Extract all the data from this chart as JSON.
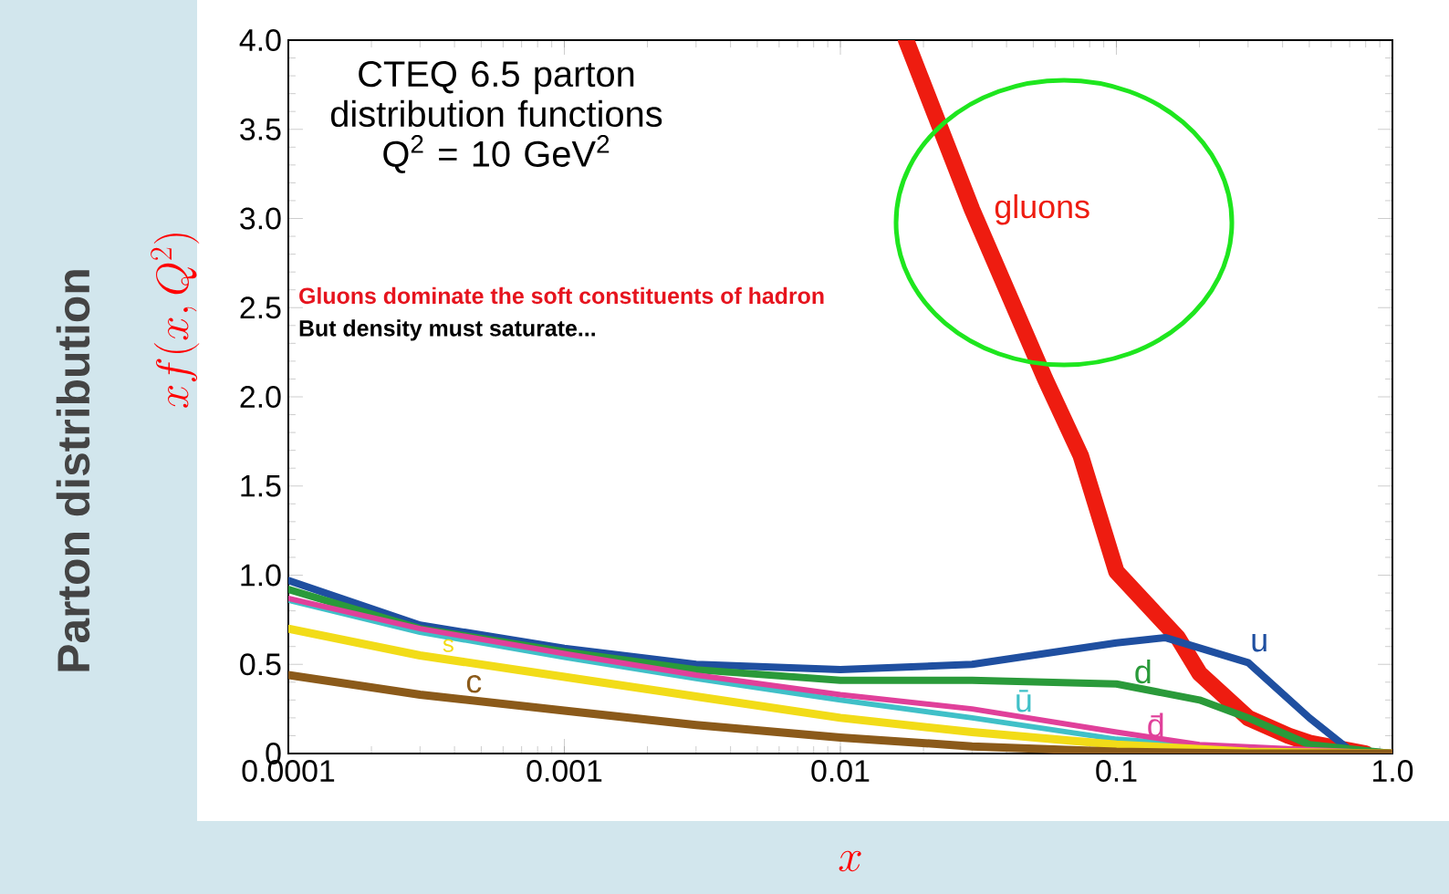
{
  "chart_data": {
    "type": "line",
    "title": "CTEQ 6.5 parton distribution functions Q$^{2}$ = 10 GeV$^{2}$",
    "xlabel": "x",
    "ylabel": "Parton distribution",
    "annotations": [
      "xf(x,Q^2)",
      "Gluons dominate the soft constituents of hadron",
      "But density must saturate..."
    ],
    "log": "x",
    "xlim": [
      0.0001,
      1
    ],
    "xticks": [
      0.0001,
      0.001,
      0.01,
      0.1,
      {
        "value": 1,
        "label": "1.0"
      }
    ],
    "ylim": [
      0,
      4
    ],
    "yticks": [
      0,
      0.5,
      {
        "value": 1,
        "label": "1.0"
      },
      1.5,
      {
        "value": 2,
        "label": "2.0"
      },
      2.5,
      {
        "value": 3,
        "label": "3.0"
      },
      3.5,
      {
        "value": 4,
        "label": "4.0"
      }
    ],
    "series": [
      {
        "name": "gluons",
        "color": "#ee1c10",
        "x": [
          0.0173,
          0.03,
          0.0552,
          0.0743,
          0.1,
          0.1668,
          0.2,
          0.3,
          0.42,
          0.5,
          0.8
        ],
        "values": [
          4.0,
          3.05,
          2.1,
          1.67,
          1.02,
          0.65,
          0.45,
          0.2,
          0.1,
          0.06,
          0
        ]
      },
      {
        "name": "u",
        "color": "#1f4fa0",
        "x": [
          0.0001,
          0.0003,
          0.001,
          0.003,
          0.01,
          0.03,
          0.1,
          0.15,
          0.3,
          0.5,
          0.7,
          1
        ],
        "values": [
          0.97,
          0.72,
          0.59,
          0.5,
          0.47,
          0.5,
          0.62,
          0.65,
          0.51,
          0.2,
          0.02,
          0
        ]
      },
      {
        "name": "d",
        "color": "#2a9a3a",
        "x": [
          0.0001,
          0.0003,
          0.001,
          0.003,
          0.01,
          0.03,
          0.1,
          0.2,
          0.3,
          0.5,
          1
        ],
        "values": [
          0.92,
          0.7,
          0.57,
          0.47,
          0.41,
          0.41,
          0.39,
          0.3,
          0.2,
          0.05,
          0
        ]
      },
      {
        "name": "ū",
        "color": "#40c0c8",
        "x": [
          0.0001,
          0.0003,
          0.001,
          0.003,
          0.01,
          0.03,
          0.1,
          0.2,
          0.5,
          1
        ],
        "values": [
          0.86,
          0.68,
          0.54,
          0.42,
          0.3,
          0.2,
          0.08,
          null,
          0,
          0
        ]
      },
      {
        "name": "d̄",
        "color": "#e0409a",
        "x": [
          0.0001,
          0.0003,
          0.001,
          0.003,
          0.01,
          0.03,
          0.1,
          0.2,
          0.5,
          1
        ],
        "values": [
          0.87,
          0.7,
          0.56,
          0.44,
          0.33,
          0.25,
          0.12,
          0.05,
          null,
          0
        ]
      },
      {
        "name": "s",
        "color": "#f2dc18",
        "x": [
          0.0001,
          0.0003,
          0.001,
          0.003,
          0.01,
          0.03,
          0.1,
          0.3,
          1
        ],
        "values": [
          0.7,
          0.55,
          0.43,
          0.32,
          0.2,
          0.12,
          0.05,
          0.01,
          0
        ]
      },
      {
        "name": "c",
        "color": "#8b5a1a",
        "x": [
          0.0001,
          0.0003,
          0.001,
          0.003,
          0.01,
          0.03,
          0.1,
          0.3,
          1
        ],
        "values": [
          0.44,
          0.33,
          0.24,
          0.16,
          0.09,
          0.04,
          0.01,
          0,
          0
        ]
      }
    ]
  }
}
